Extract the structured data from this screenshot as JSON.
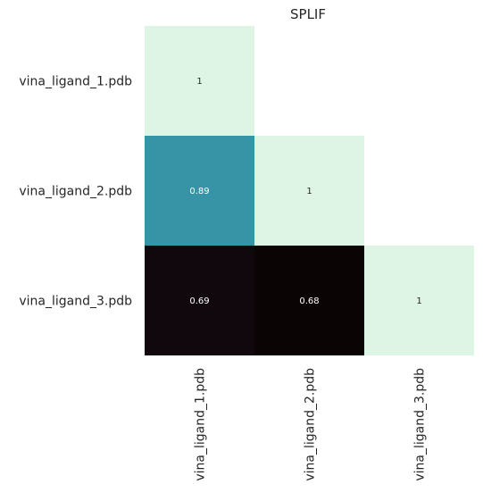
{
  "chart_data": {
    "type": "heatmap",
    "title": "SPLIF",
    "rows": [
      "vina_ligand_1.pdb",
      "vina_ligand_2.pdb",
      "vina_ligand_3.pdb"
    ],
    "columns": [
      "vina_ligand_1.pdb",
      "vina_ligand_2.pdb",
      "vina_ligand_3.pdb"
    ],
    "values": [
      [
        1,
        null,
        null
      ],
      [
        0.89,
        1,
        null
      ],
      [
        0.69,
        0.68,
        1
      ]
    ],
    "cell_labels": [
      [
        "1",
        "",
        ""
      ],
      [
        "0.89",
        "1",
        ""
      ],
      [
        "0.69",
        "0.68",
        "1"
      ]
    ],
    "mask": "upper-triangle",
    "colormap": "mako",
    "colors": {
      "high": "#def5e5",
      "mid": "#37aaac",
      "low": "#0b0405",
      "label_dark": "#262626",
      "label_light": "#ffffff"
    },
    "colorbar": false,
    "grid": false
  }
}
